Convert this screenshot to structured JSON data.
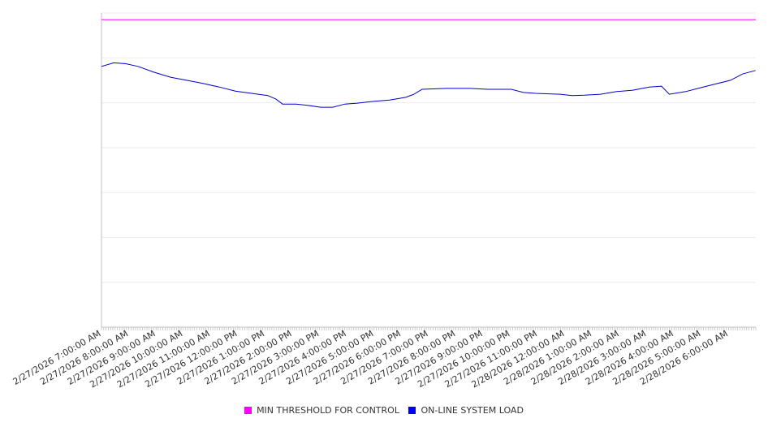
{
  "chart_data": {
    "type": "line",
    "title": "",
    "xlabel": "",
    "ylabel": "",
    "y_tick_labels_shown": false,
    "ylim": [
      0,
      700
    ],
    "xlim_hours": [
      0,
      24
    ],
    "grid": true,
    "legend_position": "bottom",
    "x_tick_labels": [
      "2/27/2026 7:00:00 AM",
      "2/27/2026 8:00:00 AM",
      "2/27/2026 9:00:00 AM",
      "2/27/2026 10:00:00 AM",
      "2/27/2026 11:00:00 AM",
      "2/27/2026 12:00:00 PM",
      "2/27/2026 1:00:00 PM",
      "2/27/2026 2:00:00 PM",
      "2/27/2026 3:00:00 PM",
      "2/27/2026 4:00:00 PM",
      "2/27/2026 5:00:00 PM",
      "2/27/2026 6:00:00 PM",
      "2/27/2026 7:00:00 PM",
      "2/27/2026 8:00:00 PM",
      "2/27/2026 9:00:00 PM",
      "2/27/2026 10:00:00 PM",
      "2/27/2026 11:00:00 PM",
      "2/28/2026 12:00:00 AM",
      "2/28/2026 1:00:00 AM",
      "2/28/2026 2:00:00 AM",
      "2/28/2026 3:00:00 AM",
      "2/28/2026 4:00:00 AM",
      "2/28/2026 5:00:00 AM",
      "2/28/2026 6:00:00 AM"
    ],
    "series": [
      {
        "name": "MIN THRESHOLD FOR CONTROL",
        "color": "#ff00ff",
        "x_hours": [
          0,
          24
        ],
        "values": [
          685,
          685
        ]
      },
      {
        "name": "ON-LINE SYSTEM LOAD",
        "color": "#0000cc",
        "legend_color": "#0000ff",
        "x_hours": [
          0,
          0.45,
          0.89,
          1.34,
          1.93,
          2.53,
          3.12,
          3.72,
          4.32,
          4.91,
          5.51,
          6.1,
          6.4,
          6.64,
          7.14,
          7.59,
          8.04,
          8.48,
          8.93,
          9.38,
          9.97,
          10.57,
          11.16,
          11.46,
          11.76,
          12.65,
          13.54,
          14.14,
          15.03,
          15.48,
          15.92,
          16.82,
          17.26,
          17.71,
          18.3,
          18.9,
          19.49,
          20.09,
          20.54,
          20.83,
          21.43,
          21.88,
          22.47,
          23.07,
          23.51,
          23.99
        ],
        "values": [
          581,
          589,
          587,
          581,
          568,
          557,
          550,
          543,
          535,
          526,
          521,
          516,
          508,
          497,
          497,
          494,
          490,
          490,
          497,
          499,
          503,
          506,
          512,
          519,
          530,
          532,
          532,
          530,
          530,
          523,
          521,
          519,
          516,
          517,
          519,
          525,
          528,
          535,
          537,
          519,
          525,
          532,
          541,
          550,
          564,
          572
        ]
      }
    ]
  }
}
